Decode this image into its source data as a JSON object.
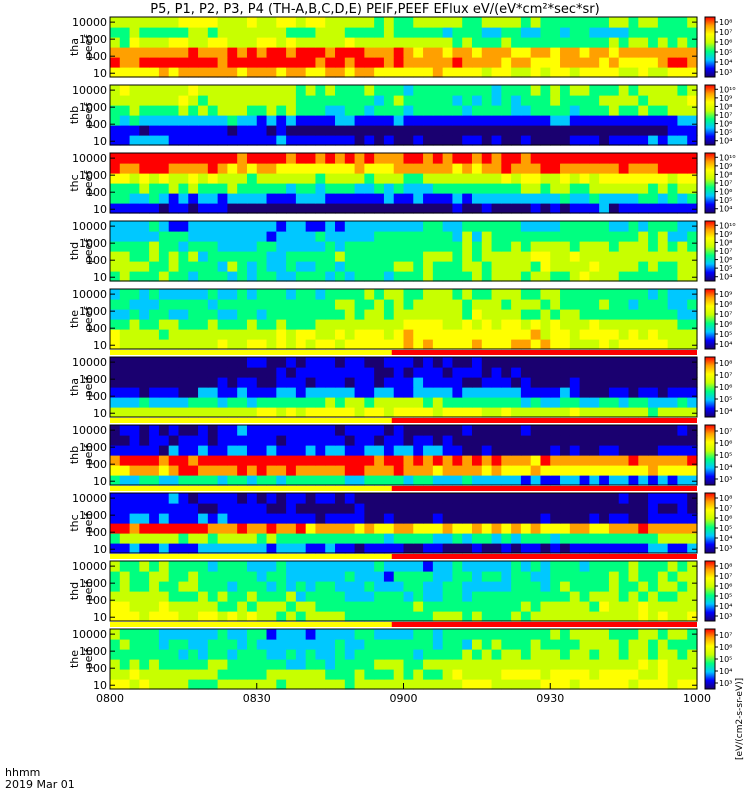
{
  "title": "P5, P1, P2, P3, P4 (TH-A,B,C,D,E) PEIF,PEEF EFlux eV/(eV*cm²*sec*sr)",
  "footer": {
    "time_label": "hhmm",
    "date_label": "2019 Mar 01"
  },
  "colorbar_label": "[eV/(cm2-s-sr-eV)]",
  "chart_data": {
    "type": "heatmap",
    "x_axis": {
      "ticks": [
        "0800",
        "0830",
        "0900",
        "0930",
        "1000"
      ],
      "range": [
        "0800",
        "1000"
      ]
    },
    "y_axis": {
      "ticks": [
        "10",
        "100",
        "1000",
        "10000"
      ],
      "scale": "log",
      "unit": "eV"
    },
    "colormap": [
      "#1a0070",
      "#0000ff",
      "#00c8ff",
      "#00ff80",
      "#c8ff00",
      "#ffff00",
      "#ffa000",
      "#ff0000"
    ],
    "panels": [
      {
        "name": "tha peef",
        "label1": "tha",
        "label2": "peef",
        "cb_ticks": [
          "10³",
          "10⁴",
          "10⁵",
          "10⁶",
          "10⁷",
          "10⁸"
        ],
        "base": [
          0.72,
          0.86,
          0.82,
          0.55,
          0.45,
          0.55
        ],
        "coverage_bar": false
      },
      {
        "name": "thb peef",
        "label1": "thb",
        "label2": "peef",
        "cb_ticks": [
          "10⁴",
          "10⁵",
          "10⁶",
          "10⁷",
          "10⁸",
          "10⁹",
          "10¹⁰"
        ],
        "base": [
          0.18,
          0.08,
          0.25,
          0.45,
          0.5,
          0.5
        ],
        "coverage_bar": false
      },
      {
        "name": "thc peef",
        "label1": "thc",
        "label2": "peef",
        "cb_ticks": [
          "10⁴",
          "10⁵",
          "10⁶",
          "10⁷",
          "10⁸",
          "10⁹",
          "10¹⁰"
        ],
        "base": [
          0.12,
          0.28,
          0.45,
          0.6,
          0.82,
          0.92
        ],
        "coverage_bar": false
      },
      {
        "name": "thd peef",
        "label1": "thd",
        "label2": "peef",
        "cb_ticks": [
          "10⁴",
          "10⁵",
          "10⁶",
          "10⁷",
          "10⁸",
          "10⁹",
          "10¹⁰"
        ],
        "base": [
          0.48,
          0.5,
          0.5,
          0.46,
          0.4,
          0.34
        ],
        "coverage_bar": false
      },
      {
        "name": "the peef",
        "label1": "the",
        "label2": "peef",
        "cb_ticks": [
          "10⁴",
          "10⁵",
          "10⁶",
          "10⁷",
          "10⁸",
          "10⁹"
        ],
        "base": [
          0.65,
          0.62,
          0.55,
          0.48,
          0.46,
          0.45
        ],
        "coverage_bar": true
      },
      {
        "name": "tha peif",
        "label1": "tha",
        "label2": "peif",
        "cb_ticks": [
          "10⁴",
          "10⁵",
          "10⁶",
          "10⁷",
          "10⁸"
        ],
        "base": [
          0.6,
          0.42,
          0.22,
          0.1,
          0.08,
          0.06
        ],
        "coverage_bar": true
      },
      {
        "name": "thb peif",
        "label1": "thb",
        "label2": "peif",
        "cb_ticks": [
          "10³",
          "10⁴",
          "10⁵",
          "10⁶",
          "10⁷"
        ],
        "base": [
          0.34,
          0.78,
          0.88,
          0.18,
          0.12,
          0.12
        ],
        "coverage_bar": true
      },
      {
        "name": "thc peif",
        "label1": "thc",
        "label2": "peif",
        "cb_ticks": [
          "10³",
          "10⁴",
          "10⁵",
          "10⁶",
          "10⁷",
          "10⁸"
        ],
        "base": [
          0.2,
          0.45,
          0.8,
          0.15,
          0.1,
          0.1
        ],
        "coverage_bar": true
      },
      {
        "name": "thd peif",
        "label1": "thd",
        "label2": "peif",
        "cb_ticks": [
          "10³",
          "10⁴",
          "10⁵",
          "10⁶",
          "10⁷",
          "10⁸"
        ],
        "base": [
          0.55,
          0.52,
          0.48,
          0.42,
          0.4,
          0.38
        ],
        "coverage_bar": true
      },
      {
        "name": "the peif",
        "label1": "the",
        "label2": "peif",
        "cb_ticks": [
          "10³",
          "10⁴",
          "10⁵",
          "10⁶",
          "10⁷"
        ],
        "base": [
          0.6,
          0.56,
          0.5,
          0.45,
          0.42,
          0.4
        ],
        "coverage_bar": false
      }
    ]
  }
}
